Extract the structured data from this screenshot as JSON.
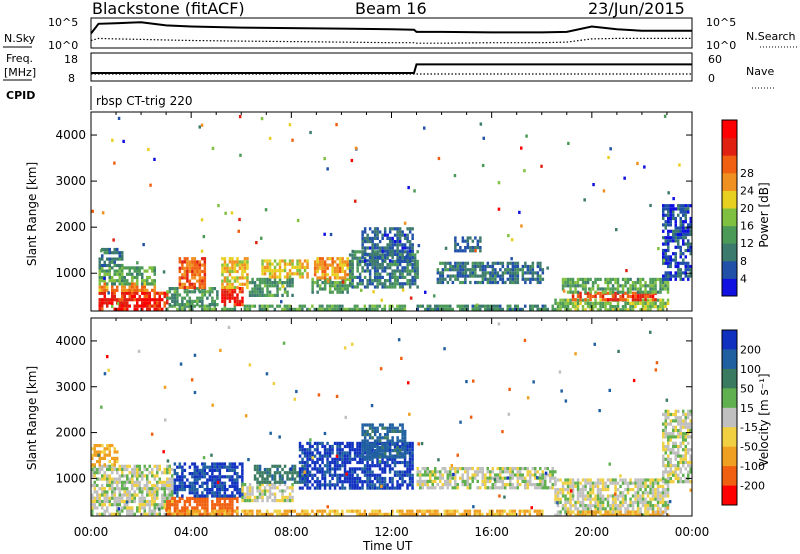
{
  "header": {
    "station": "Blackstone (fitACF)",
    "beam": "Beam 16",
    "date": "23/Jun/2015"
  },
  "noise_panel": {
    "left_label": "N.Sky",
    "right_label": "N.Search",
    "left_ticks": [
      "10^5",
      "10^0"
    ],
    "right_ticks": [
      "10^5",
      "10^0"
    ]
  },
  "freq_panel": {
    "left_label_1": "Freq.",
    "left_label_2": "[MHz]",
    "right_label": "Nave",
    "left_ticks": [
      "18",
      "8"
    ],
    "right_ticks": [
      "60",
      "0"
    ]
  },
  "cpid": {
    "label": "CPID",
    "text": "rbsp CT-trig 220"
  },
  "chart_data": [
    {
      "type": "line",
      "title": "N.Sky / N.Search",
      "x": [
        0,
        0.3,
        1,
        2,
        3,
        4,
        6,
        8,
        10,
        12,
        12.9,
        13,
        14,
        16,
        18,
        19,
        20,
        21,
        22,
        23,
        24
      ],
      "series": [
        {
          "name": "N.Sky",
          "values": [
            2.5,
            4.3,
            4.4,
            4.6,
            4.0,
            3.8,
            3.6,
            3.5,
            3.4,
            3.3,
            3.2,
            2.8,
            2.8,
            2.7,
            2.7,
            2.8,
            3.8,
            3.3,
            3.0,
            3.0,
            3.0
          ]
        },
        {
          "name": "N.Search",
          "values": [
            1.2,
            1.6,
            1.5,
            1.4,
            1.3,
            1.2,
            1.1,
            1.0,
            0.9,
            0.8,
            0.8,
            0.7,
            0.7,
            0.8,
            0.8,
            0.9,
            1.5,
            1.6,
            1.6,
            1.6,
            1.6
          ]
        }
      ]
    },
    {
      "type": "line",
      "title": "Freq. [MHz] / Nave",
      "x": [
        0,
        0.3,
        12.9,
        13,
        24
      ],
      "series": [
        {
          "name": "Freq. [MHz]",
          "values": [
            10.5,
            10.5,
            10.5,
            14.8,
            14.8
          ]
        },
        {
          "name": "Nave",
          "values": [
            10,
            10,
            10,
            10,
            10
          ]
        }
      ]
    },
    {
      "type": "heatmap",
      "title": "Power [dB]",
      "xlabel": "Time UT",
      "ylabel": "Slant Range [km]",
      "xlim": [
        0,
        24
      ],
      "ylim": [
        180,
        4500
      ],
      "x_ticks": [
        "00:00",
        "04:00",
        "08:00",
        "12:00",
        "16:00",
        "20:00",
        "00:00"
      ],
      "y_ticks": [
        1000,
        2000,
        3000,
        4000
      ],
      "colorbar_label": "Power [dB]",
      "colorbar_ticks": [
        4,
        8,
        12,
        16,
        20,
        24,
        28
      ],
      "colorbar_colors": [
        "#1010e0",
        "#2050a8",
        "#3d7a6e",
        "#4c9a58",
        "#80c040",
        "#e8d020",
        "#f09020",
        "#f06010",
        "#e02010",
        "#ff0000"
      ],
      "regions": [
        {
          "t0": 0.3,
          "t1": 3.0,
          "r0": 200,
          "r1": 600,
          "value": 28
        },
        {
          "t0": 0.3,
          "t1": 2.5,
          "r0": 600,
          "r1": 800,
          "value": 22
        },
        {
          "t0": 0.3,
          "t1": 2.5,
          "r0": 800,
          "r1": 1150,
          "value": 12
        },
        {
          "t0": 0.3,
          "t1": 1.2,
          "r0": 1150,
          "r1": 1550,
          "value": 8
        },
        {
          "t0": 3.0,
          "t1": 12.5,
          "r0": 190,
          "r1": 320,
          "value": 12
        },
        {
          "t0": 3.0,
          "t1": 5.0,
          "r0": 320,
          "r1": 700,
          "value": 10
        },
        {
          "t0": 3.5,
          "t1": 4.5,
          "r0": 700,
          "r1": 1350,
          "value": 24
        },
        {
          "t0": 5.2,
          "t1": 6.0,
          "r0": 300,
          "r1": 700,
          "value": 28
        },
        {
          "t0": 5.2,
          "t1": 6.2,
          "r0": 700,
          "r1": 1350,
          "value": 18
        },
        {
          "t0": 6.3,
          "t1": 8.0,
          "r0": 500,
          "r1": 900,
          "value": 10
        },
        {
          "t0": 6.8,
          "t1": 8.6,
          "r0": 900,
          "r1": 1300,
          "value": 18
        },
        {
          "t0": 8.8,
          "t1": 10.3,
          "r0": 600,
          "r1": 900,
          "value": 12
        },
        {
          "t0": 8.9,
          "t1": 10.3,
          "r0": 900,
          "r1": 1350,
          "value": 20
        },
        {
          "t0": 10.3,
          "t1": 13.0,
          "r0": 700,
          "r1": 1500,
          "value": 8
        },
        {
          "t0": 10.8,
          "t1": 12.8,
          "r0": 1300,
          "r1": 2000,
          "value": 6
        },
        {
          "t0": 13.0,
          "t1": 18.5,
          "r0": 190,
          "r1": 320,
          "value": 9
        },
        {
          "t0": 13.8,
          "t1": 18.0,
          "r0": 800,
          "r1": 1250,
          "value": 7
        },
        {
          "t0": 14.5,
          "t1": 15.5,
          "r0": 1500,
          "r1": 1800,
          "value": 6
        },
        {
          "t0": 18.5,
          "t1": 23.0,
          "r0": 190,
          "r1": 450,
          "value": 14
        },
        {
          "t0": 19.2,
          "t1": 22.5,
          "r0": 400,
          "r1": 600,
          "value": 26
        },
        {
          "t0": 18.8,
          "t1": 23.0,
          "r0": 600,
          "r1": 900,
          "value": 12
        },
        {
          "t0": 22.8,
          "t1": 24.0,
          "r0": 900,
          "r1": 2500,
          "value": 5
        }
      ]
    },
    {
      "type": "heatmap",
      "title": "Velocity [m s^-1]",
      "xlabel": "Time UT",
      "ylabel": "Slant Range [km]",
      "xlim": [
        0,
        24
      ],
      "ylim": [
        180,
        4500
      ],
      "x_ticks": [
        "00:00",
        "04:00",
        "08:00",
        "12:00",
        "16:00",
        "20:00",
        "00:00"
      ],
      "y_ticks": [
        1000,
        2000,
        3000,
        4000
      ],
      "colorbar_label": "Velocity [m s⁻¹]",
      "colorbar_ticks": [
        200,
        100,
        50,
        15,
        -15,
        -50,
        -100,
        -200
      ],
      "colorbar_colors": [
        "#1030c0",
        "#2060a0",
        "#3a7a60",
        "#60b050",
        "#c0c0c0",
        "#f0d040",
        "#f0a020",
        "#f06010",
        "#ff0000"
      ],
      "regions": [
        {
          "t0": 0.0,
          "t1": 3.2,
          "r0": 190,
          "r1": 1300,
          "value": 0
        },
        {
          "t0": 0.0,
          "t1": 1.0,
          "r0": 1300,
          "r1": 1750,
          "value": -60
        },
        {
          "t0": 3.0,
          "t1": 5.8,
          "r0": 190,
          "r1": 600,
          "value": -130
        },
        {
          "t0": 3.3,
          "t1": 6.0,
          "r0": 600,
          "r1": 1350,
          "value": 210
        },
        {
          "t0": 6.0,
          "t1": 8.0,
          "r0": 500,
          "r1": 900,
          "value": 0
        },
        {
          "t0": 6.5,
          "t1": 8.6,
          "r0": 900,
          "r1": 1300,
          "value": 80
        },
        {
          "t0": 8.3,
          "t1": 12.8,
          "r0": 800,
          "r1": 1800,
          "value": 210
        },
        {
          "t0": 10.8,
          "t1": 12.5,
          "r0": 1500,
          "r1": 2200,
          "value": 120
        },
        {
          "t0": 3.0,
          "t1": 18.0,
          "r0": 190,
          "r1": 320,
          "value": -60
        },
        {
          "t0": 13.0,
          "t1": 18.5,
          "r0": 800,
          "r1": 1250,
          "value": 0
        },
        {
          "t0": 18.5,
          "t1": 23.0,
          "r0": 190,
          "r1": 1000,
          "value": 0
        },
        {
          "t0": 19.0,
          "t1": 23.0,
          "r0": 190,
          "r1": 300,
          "value": -60
        },
        {
          "t0": 22.8,
          "t1": 24.0,
          "r0": 900,
          "r1": 2500,
          "value": 0
        }
      ]
    }
  ]
}
